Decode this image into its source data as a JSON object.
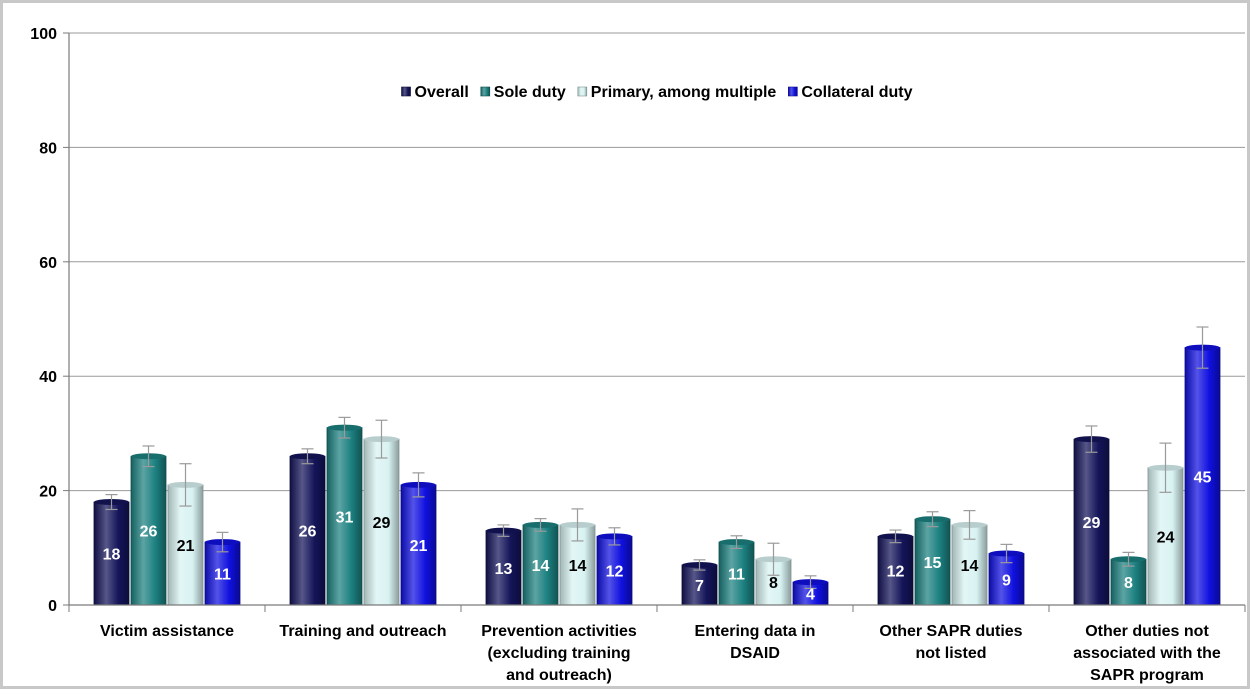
{
  "chart_data": {
    "type": "bar",
    "title": "",
    "xlabel": "",
    "ylabel": "",
    "ylim": [
      0,
      100
    ],
    "yticks": [
      "0",
      "20",
      "40",
      "60",
      "80",
      "100"
    ],
    "grid": true,
    "legend_position": "top-center",
    "categories": [
      [
        "Victim assistance"
      ],
      [
        "Training and outreach"
      ],
      [
        "Prevention activities",
        "(excluding training",
        "and outreach)"
      ],
      [
        "Entering data in",
        "DSAID"
      ],
      [
        "Other SAPR duties",
        "not listed"
      ],
      [
        "Other duties not",
        "associated with the",
        "SAPR program"
      ]
    ],
    "series": [
      {
        "name": "Overall",
        "color": "#14145a",
        "label_color": "#ffffff",
        "values": [
          18,
          26,
          13,
          7,
          12,
          29
        ],
        "error": [
          1.3,
          1.3,
          1.0,
          0.9,
          1.1,
          2.3
        ]
      },
      {
        "name": "Sole duty",
        "color": "#1c8080",
        "label_color": "#ffffff",
        "values": [
          26,
          31,
          14,
          11,
          15,
          8
        ],
        "error": [
          1.8,
          1.8,
          1.1,
          1.1,
          1.3,
          1.2
        ]
      },
      {
        "name": "Primary, among multiple",
        "color": "#d8f2f2",
        "label_color": "#000000",
        "values": [
          21,
          29,
          14,
          8,
          14,
          24
        ],
        "error": [
          3.7,
          3.3,
          2.8,
          2.8,
          2.5,
          4.3
        ]
      },
      {
        "name": "Collateral duty",
        "color": "#1010e0",
        "label_color": "#ffffff",
        "values": [
          11,
          21,
          12,
          4,
          9,
          45
        ],
        "error": [
          1.7,
          2.1,
          1.5,
          1.1,
          1.6,
          3.6
        ]
      }
    ],
    "data_labels": [
      [
        "18",
        "26",
        "13",
        "7",
        "12",
        "29"
      ],
      [
        "26",
        "31",
        "14",
        "11",
        "15",
        "8"
      ],
      [
        "21",
        "29",
        "14",
        "8",
        "14",
        "24"
      ],
      [
        "11",
        "21",
        "12",
        "4",
        "9",
        "45"
      ]
    ]
  }
}
